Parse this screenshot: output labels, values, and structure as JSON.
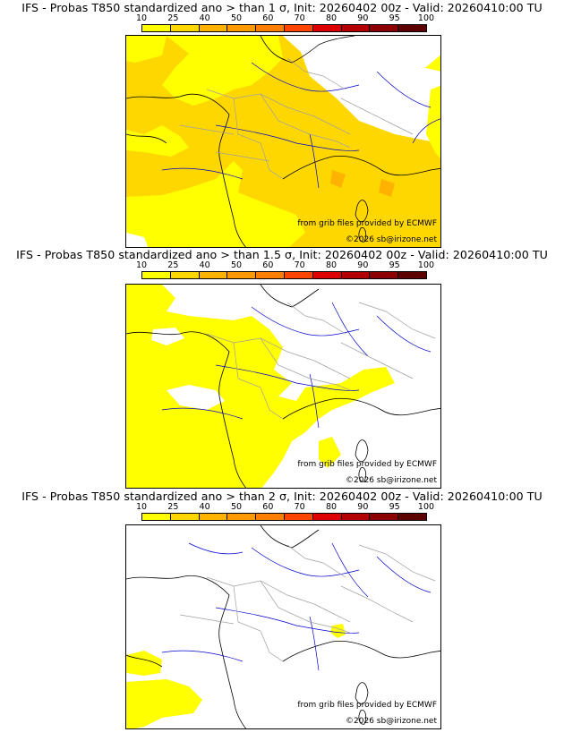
{
  "colors": {
    "scale": [
      "#ffff00",
      "#ffd700",
      "#ffb300",
      "#ff9900",
      "#ff7f00",
      "#ff4500",
      "#dd0000",
      "#b20000",
      "#8b0000",
      "#5c0000"
    ],
    "coast": "#000000",
    "rivers": "#0000cd",
    "borders": "#a0a0a0"
  },
  "scale_ticks": [
    "10",
    "25",
    "40",
    "50",
    "60",
    "70",
    "80",
    "90",
    "95",
    "100"
  ],
  "panels": [
    {
      "title": "IFS - Probas T850  standardized ano > than 1 σ, Init: 20260402 00z - Valid: 20260410:00 TU",
      "credit_source": "from grib files provided by ECMWF",
      "credit_copyright": "©2026 sb@irizone.net"
    },
    {
      "title": "IFS - Probas T850  standardized ano > than 1.5 σ, Init: 20260402 00z - Valid: 20260410:00 TU",
      "credit_source": "from grib files provided by ECMWF",
      "credit_copyright": "©2026 sb@irizone.net"
    },
    {
      "title": "IFS - Probas T850  standardized ano > than 2 σ, Init: 20260402 00z - Valid: 20260410:00 TU",
      "credit_source": "from grib files provided by ECMWF",
      "credit_copyright": "©2026 sb@irizone.net"
    }
  ]
}
